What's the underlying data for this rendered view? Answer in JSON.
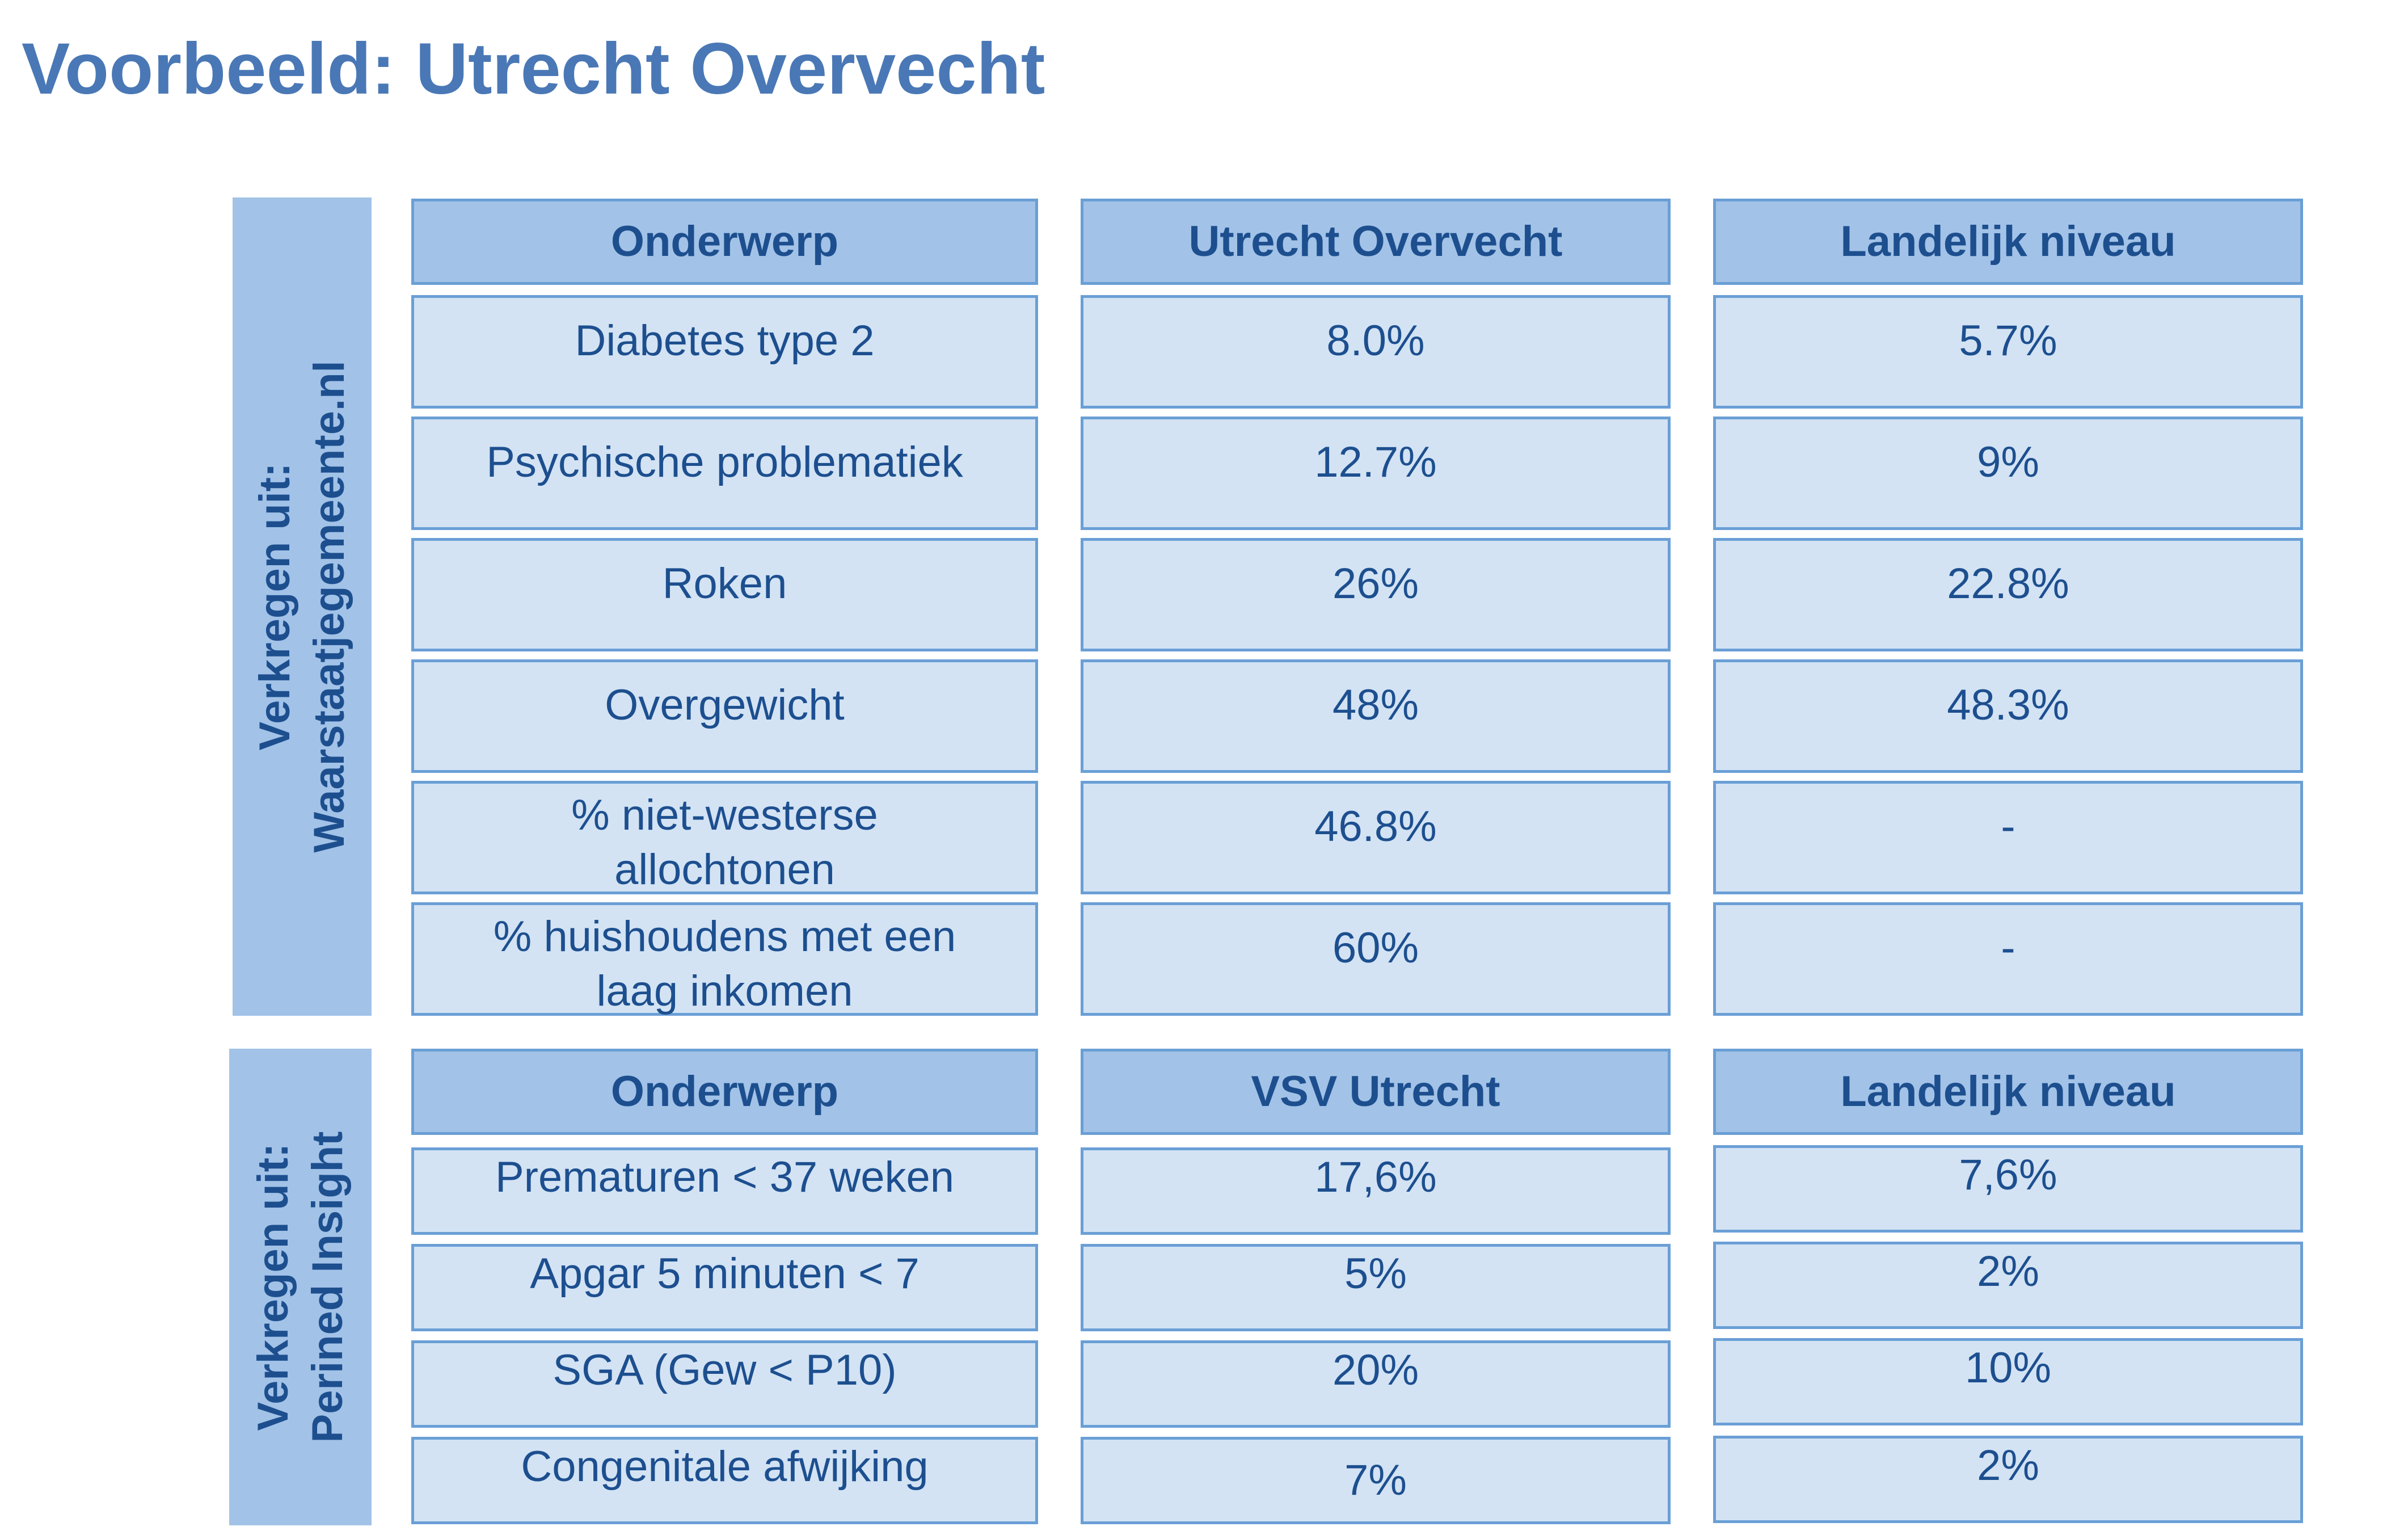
{
  "title": "Voorbeeld: Utrecht Overvecht",
  "section1": {
    "label_line1": "Verkregen uit:",
    "label_line2": "Waarstaatjegemeente.nl",
    "headers": [
      "Onderwerp",
      "Utrecht Overvecht",
      "Landelijk niveau"
    ],
    "rows": [
      {
        "topic": "Diabetes type 2",
        "local": "8.0%",
        "national": "5.7%"
      },
      {
        "topic": "Psychische problematiek",
        "local": "12.7%",
        "national": "9%"
      },
      {
        "topic": "Roken",
        "local": "26%",
        "national": "22.8%"
      },
      {
        "topic": "Overgewicht",
        "local": "48%",
        "national": "48.3%"
      },
      {
        "topic_line1": "% niet-westerse",
        "topic_line2": "allochtonen",
        "local": "46.8%",
        "national": "-"
      },
      {
        "topic_line1": "% huishoudens met een",
        "topic_line2": "laag inkomen",
        "local": "60%",
        "national": "-"
      }
    ]
  },
  "section2": {
    "label_line1": "Verkregen uit:",
    "label_line2": "Perined Insight",
    "headers": [
      "Onderwerp",
      "VSV Utrecht",
      "Landelijk niveau"
    ],
    "rows": [
      {
        "topic": "Prematuren < 37 weken",
        "local": "17,6%",
        "national": "7,6%"
      },
      {
        "topic": "Apgar 5 minuten < 7",
        "local": "5%",
        "national": "2%"
      },
      {
        "topic": "SGA (Gew < P10)",
        "local": "20%",
        "national": "10%"
      },
      {
        "topic": "Congenitale afwijking",
        "local": "7%",
        "national": "2%"
      }
    ]
  }
}
